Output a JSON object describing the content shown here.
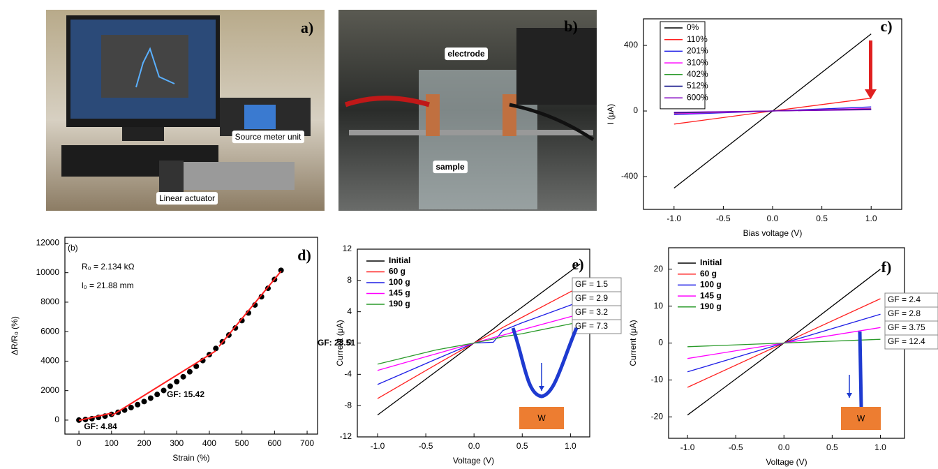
{
  "photos": [
    {
      "panel_label": "a)",
      "labels": [
        "Source meter unit",
        "Linear actuator"
      ]
    },
    {
      "panel_label": "b)",
      "labels": [
        "electrode",
        "sample"
      ]
    }
  ],
  "chart_data": [
    {
      "type": "line",
      "panel_label": "c)",
      "x_label": "Bias voltage (V)",
      "y_label": "I (μA)",
      "xlim": [
        -1.31,
        1.31
      ],
      "ylim": [
        -600,
        562
      ],
      "xticks": [
        {
          "value": -1,
          "label": "-1.0"
        },
        {
          "value": -0.5,
          "label": "-0.5"
        },
        {
          "value": 0,
          "label": "0.0"
        },
        {
          "value": 0.5,
          "label": "0.5"
        },
        {
          "value": 1,
          "label": "1.0"
        }
      ],
      "yticks": [
        -400,
        0,
        400
      ],
      "legend": "upper left",
      "x": [
        -1,
        0,
        1
      ],
      "series": [
        {
          "name": "0%",
          "color": "#000000",
          "values": [
            -470,
            0,
            470
          ]
        },
        {
          "name": "110%",
          "color": "#ff2020",
          "values": [
            -80,
            0,
            78
          ]
        },
        {
          "name": "201%",
          "color": "#1e1ee6",
          "values": [
            -22,
            0,
            25
          ]
        },
        {
          "name": "310%",
          "color": "#ff00ff",
          "values": [
            -16,
            0,
            16
          ]
        },
        {
          "name": "402%",
          "color": "#2a9a2a",
          "values": [
            -12,
            0,
            12
          ]
        },
        {
          "name": "512%",
          "color": "#000080",
          "values": [
            -10,
            0,
            10
          ]
        },
        {
          "name": "600%",
          "color": "#8000c0",
          "values": [
            -8,
            0,
            8
          ]
        }
      ]
    },
    {
      "type": "scatter",
      "panel_label": "d)",
      "x_label": "Strain (%)",
      "y_label": "ΔR/R₀ (%)",
      "xlim": [
        -43,
        732
      ],
      "ylim": [
        -950,
        12400
      ],
      "xticks": [
        0,
        100,
        200,
        300,
        400,
        500,
        600,
        700
      ],
      "yticks": [
        0,
        2000,
        4000,
        6000,
        8000,
        10000,
        12000
      ],
      "annotations": [
        "(b)",
        "R₀ = 2.134 kΩ",
        "l₀ = 21.88 mm",
        "GF: 4.84",
        "GF: 15.42",
        "GF: 28.51"
      ],
      "series": [
        {
          "type": "scatter",
          "color": "#000000",
          "x": [
            0,
            20,
            40,
            60,
            80,
            100,
            120,
            140,
            160,
            180,
            200,
            220,
            240,
            260,
            280,
            300,
            320,
            340,
            360,
            380,
            400,
            420,
            440,
            460,
            480,
            500,
            520,
            540,
            560,
            580,
            600,
            620
          ],
          "values": [
            0,
            40,
            100,
            180,
            270,
            390,
            530,
            680,
            850,
            1050,
            1260,
            1490,
            1740,
            2010,
            2300,
            2610,
            2940,
            3280,
            3650,
            4040,
            4440,
            4860,
            5310,
            5770,
            6250,
            6750,
            7270,
            7810,
            8370,
            8940,
            9540,
            10160
          ]
        },
        {
          "type": "line",
          "color": "#ff2020",
          "x": [
            0,
            100
          ],
          "values": [
            -20,
            470
          ]
        },
        {
          "type": "line",
          "color": "#ff2020",
          "x": [
            100,
            420
          ],
          "values": [
            300,
            4700
          ]
        },
        {
          "type": "line",
          "color": "#ff2020",
          "x": [
            430,
            620
          ],
          "values": [
            5000,
            10100
          ]
        }
      ]
    },
    {
      "type": "line",
      "panel_label": "e)",
      "x_label": "Voltage (V)",
      "y_label": "Current (μA)",
      "xlim": [
        -1.21,
        1.2
      ],
      "ylim": [
        -12,
        12
      ],
      "xticks": [
        {
          "value": -1,
          "label": "-1.0"
        },
        {
          "value": -0.5,
          "label": "-0.5"
        },
        {
          "value": 0,
          "label": "0.0"
        },
        {
          "value": 0.5,
          "label": "0.5"
        },
        {
          "value": 1,
          "label": "1.0"
        }
      ],
      "yticks": [
        -12,
        -8,
        -4,
        0,
        4,
        8,
        12
      ],
      "legend": "upper left",
      "gf_labels": [
        "GF = 1.5",
        "GF = 2.9",
        "GF = 3.2",
        "GF = 7.3"
      ],
      "w_label": "W",
      "x": [
        -1,
        -0.4,
        0,
        0.2,
        0.3,
        0.5,
        1.1
      ],
      "series": [
        {
          "name": "Initial",
          "color": "#000000",
          "values": [
            -9.2,
            -3.7,
            0,
            1.8,
            2.8,
            4.6,
            10.1
          ]
        },
        {
          "name": "60 g",
          "color": "#ff2020",
          "values": [
            -7.1,
            -2.8,
            0,
            1.3,
            2.0,
            3.3,
            7.2
          ]
        },
        {
          "name": "100 g",
          "color": "#1e1ee6",
          "values": [
            -5.3,
            -2.1,
            0,
            0.1,
            1.6,
            2.6,
            5.3
          ]
        },
        {
          "name": "145 g",
          "color": "#ff00ff",
          "values": [
            -3.5,
            -1.4,
            0,
            0.7,
            1.0,
            1.7,
            3.7
          ]
        },
        {
          "name": "190 g",
          "color": "#2a9a2a",
          "values": [
            -2.7,
            -0.9,
            0,
            0.5,
            0.8,
            1.2,
            2.7
          ]
        }
      ]
    },
    {
      "type": "line",
      "panel_label": "f)",
      "x_label": "Voltage (V)",
      "y_label": "Current (μA)",
      "xlim": [
        -1.196,
        1.25
      ],
      "ylim": [
        -25.8,
        25.8
      ],
      "xticks": [
        {
          "value": -1,
          "label": "-1.0"
        },
        {
          "value": -0.5,
          "label": "-0.5"
        },
        {
          "value": 0,
          "label": "0.0"
        },
        {
          "value": 0.5,
          "label": "0.5"
        },
        {
          "value": 1,
          "label": "1.0"
        }
      ],
      "yticks": [
        -20,
        -10,
        0,
        10,
        20
      ],
      "legend": "upper left",
      "gf_labels": [
        "GF = 2.4",
        "GF = 2.8",
        "GF = 3.75",
        "GF = 12.4"
      ],
      "w_label": "W",
      "x": [
        -1,
        0,
        1
      ],
      "series": [
        {
          "name": "Initial",
          "color": "#000000",
          "values": [
            -19.5,
            0,
            20
          ]
        },
        {
          "name": "60 g",
          "color": "#ff2020",
          "values": [
            -12,
            0,
            12
          ]
        },
        {
          "name": "100 g",
          "color": "#1e1ee6",
          "values": [
            -7.8,
            0,
            7.8
          ]
        },
        {
          "name": "145 g",
          "color": "#ff00ff",
          "values": [
            -4.2,
            0,
            4.2
          ]
        },
        {
          "name": "190 g",
          "color": "#2a9a2a",
          "values": [
            -1,
            0,
            1
          ]
        }
      ]
    }
  ]
}
